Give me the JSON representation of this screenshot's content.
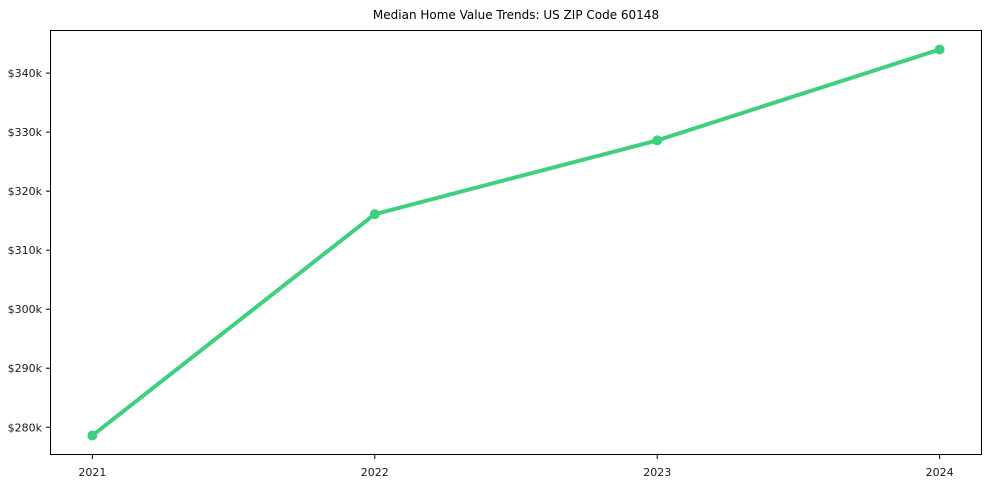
{
  "chart_data": {
    "type": "line",
    "title": "Median Home Value Trends: US ZIP Code 60148",
    "x": [
      2021,
      2022,
      2023,
      2024
    ],
    "x_tick_labels": [
      "2021",
      "2022",
      "2023",
      "2024"
    ],
    "series": [
      {
        "name": "Median Home Value",
        "values": [
          278600,
          316100,
          328600,
          344000
        ]
      }
    ],
    "y_tick_values": [
      280000,
      290000,
      300000,
      310000,
      320000,
      330000,
      340000
    ],
    "y_tick_labels": [
      "$280k",
      "$290k",
      "$300k",
      "$310k",
      "$320k",
      "$330k",
      "$340k"
    ],
    "xlim": [
      2020.85,
      2024.15
    ],
    "ylim": [
      275300,
      347300
    ],
    "xlabel": "",
    "ylabel": "",
    "grid": false,
    "legend": "none",
    "line_color": "#3ECF7F",
    "marker_color": "#3ECF7F",
    "axis_color": "#000000",
    "text_color": "#1a1a1a",
    "background": "#ffffff"
  }
}
